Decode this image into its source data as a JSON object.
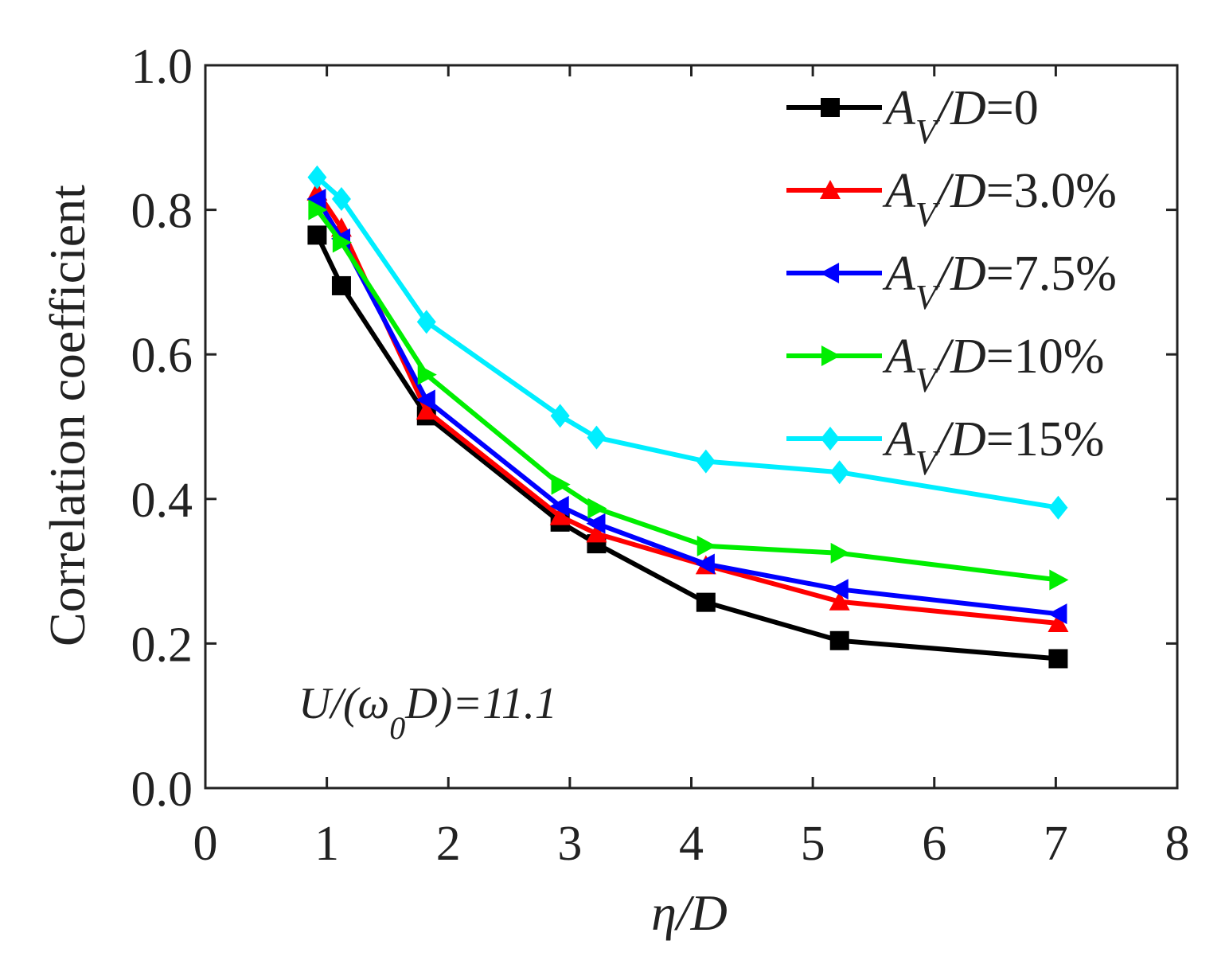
{
  "chart_data": {
    "type": "line",
    "xlabel": "η/D",
    "ylabel": "Correlation coefficient",
    "xlim": [
      0,
      8
    ],
    "ylim": [
      0.0,
      1.0
    ],
    "x_ticks": [
      "0",
      "1",
      "2",
      "3",
      "4",
      "5",
      "6",
      "7",
      "8"
    ],
    "y_ticks": [
      "0.0",
      "0.2",
      "0.4",
      "0.6",
      "0.8",
      "1.0"
    ],
    "grid": false,
    "legend_position": "top-right",
    "annotation": {
      "main": "U/(ω",
      "subscript": "0",
      "tail": "D)=11.1"
    },
    "x": [
      0.92,
      1.12,
      1.82,
      2.92,
      3.22,
      4.12,
      5.22,
      7.02
    ],
    "series": [
      {
        "name": "A_V/D=0",
        "label_main": "A",
        "label_sub": "V",
        "label_tail": "/D=0",
        "marker": "square",
        "color": "#000000",
        "values": [
          0.765,
          0.695,
          0.515,
          0.368,
          0.338,
          0.257,
          0.204,
          0.179
        ]
      },
      {
        "name": "A_V/D=3.0%",
        "label_main": "A",
        "label_sub": "V",
        "label_tail": "/D=3.0%",
        "marker": "triangle-up",
        "color": "#ff0000",
        "values": [
          0.825,
          0.775,
          0.522,
          0.376,
          0.352,
          0.308,
          0.258,
          0.228
        ]
      },
      {
        "name": "A_V/D=7.5%",
        "label_main": "A",
        "label_sub": "V",
        "label_tail": "/D=7.5%",
        "marker": "triangle-left",
        "color": "#0000ff",
        "values": [
          0.815,
          0.76,
          0.537,
          0.39,
          0.366,
          0.31,
          0.275,
          0.241
        ]
      },
      {
        "name": "A_V/D=10%",
        "label_main": "A",
        "label_sub": "V",
        "label_tail": "/D=10%",
        "marker": "triangle-right",
        "color": "#00ee00",
        "values": [
          0.8,
          0.755,
          0.572,
          0.42,
          0.387,
          0.335,
          0.325,
          0.288
        ]
      },
      {
        "name": "A_V/D=15%",
        "label_main": "A",
        "label_sub": "V",
        "label_tail": "/D=15%",
        "marker": "diamond",
        "color": "#00eeff",
        "values": [
          0.845,
          0.815,
          0.645,
          0.515,
          0.485,
          0.452,
          0.437,
          0.388
        ]
      }
    ]
  }
}
